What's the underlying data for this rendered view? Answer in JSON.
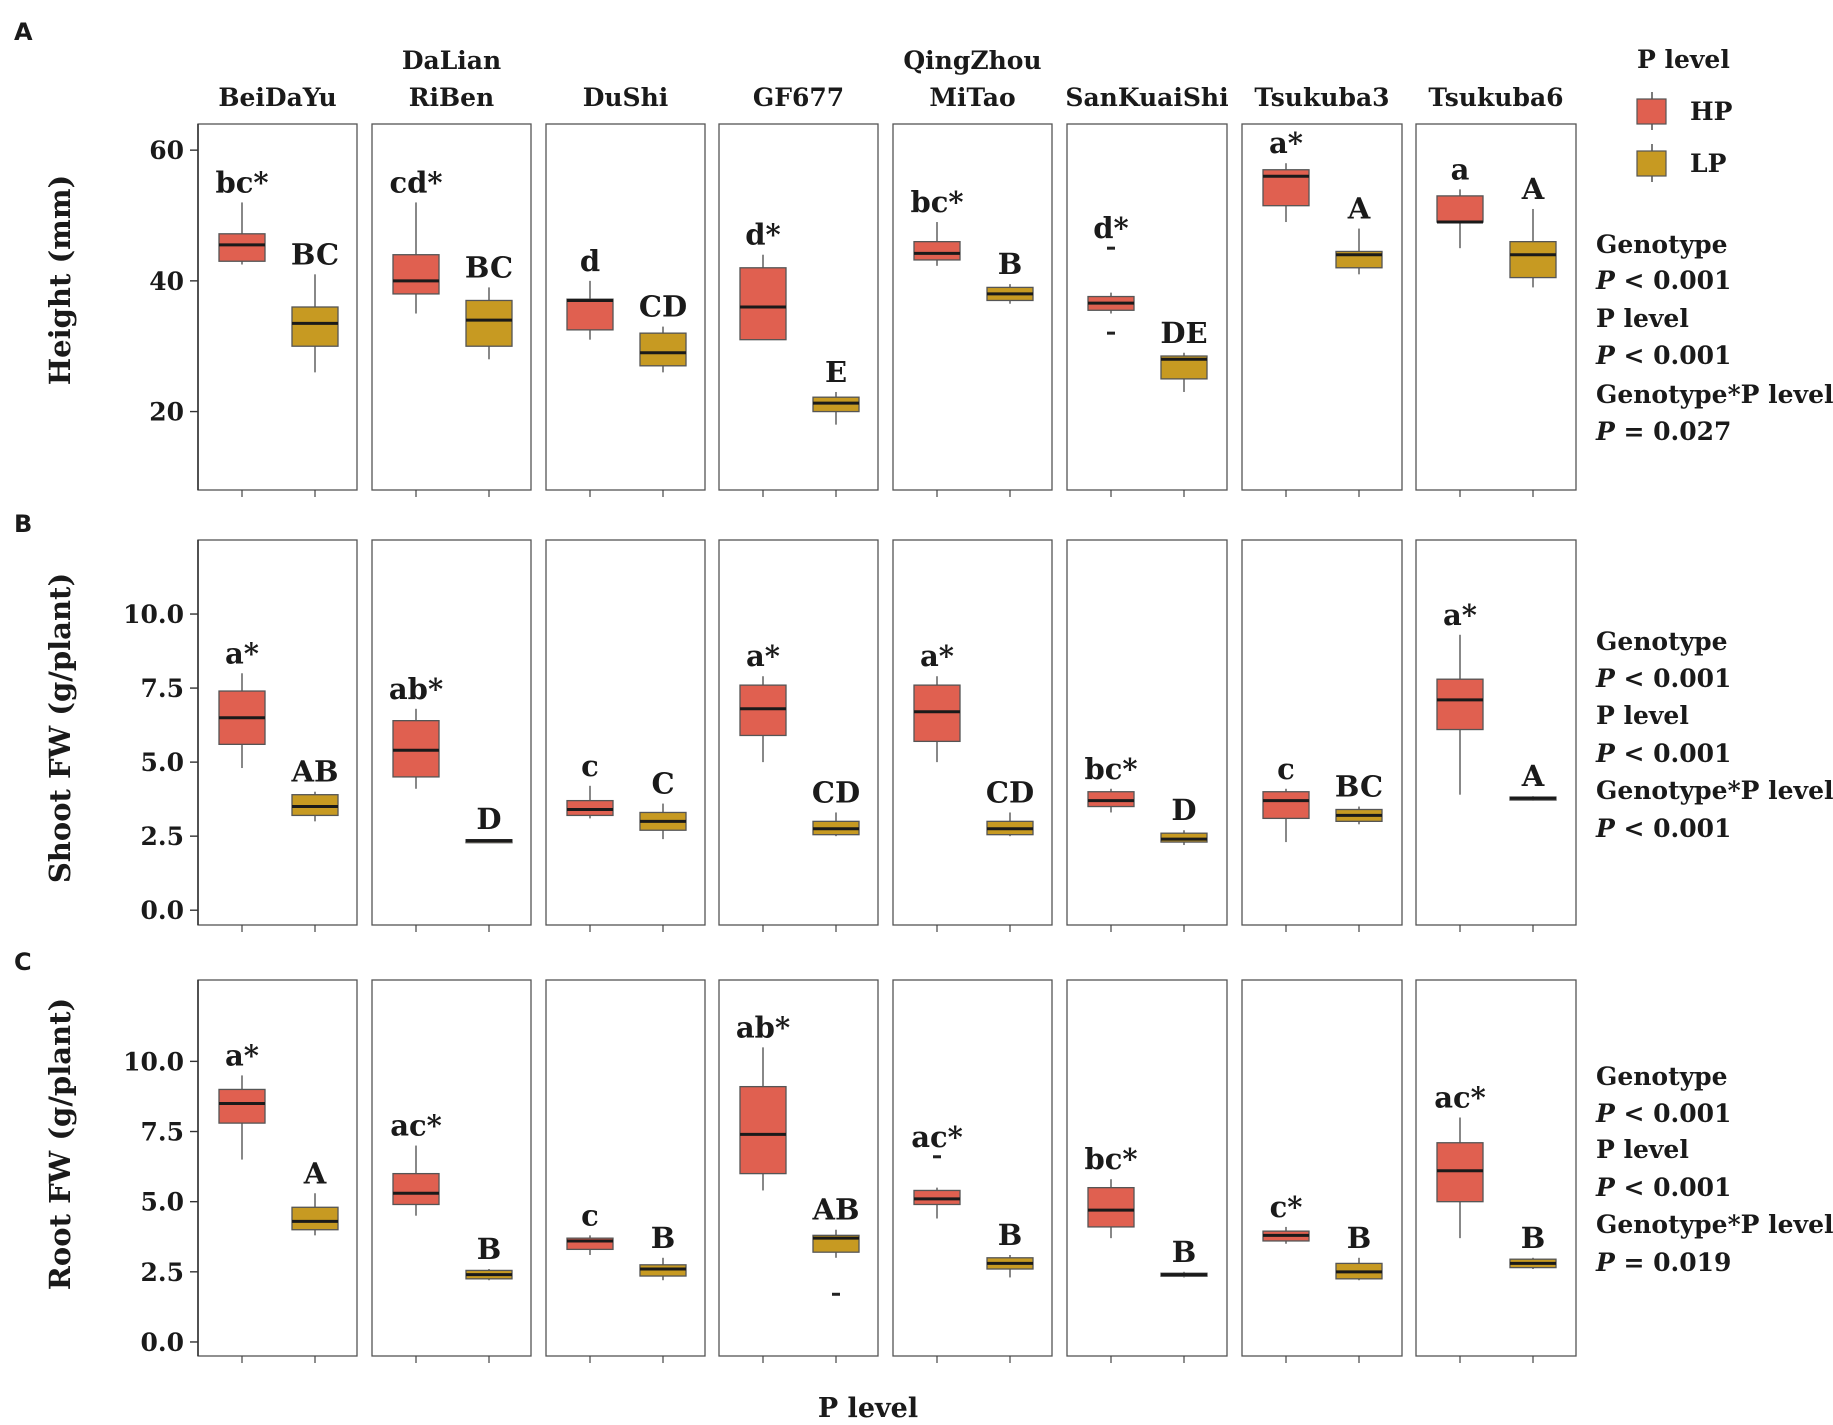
{
  "figure": {
    "genotypes": [
      "BeiDaYu",
      "DaLian\nRiBen",
      "DuShi",
      "GF677",
      "QingZhou\nMiTao",
      "SanKuaiShi",
      "Tsukuba3",
      "Tsukuba6"
    ],
    "x_label": "P level",
    "legend": {
      "title": "P level",
      "items": [
        {
          "label": "HP",
          "color": "#e06050"
        },
        {
          "label": "LP",
          "color": "#c79a22"
        }
      ]
    }
  },
  "chart_data": [
    {
      "type": "box",
      "panel": "A",
      "ylabel": "Height (mm)",
      "ylim": [
        8,
        64
      ],
      "yticks": [
        20,
        40,
        60
      ],
      "ytick_labels": [
        "20",
        "40",
        "60"
      ],
      "categories": [
        "BeiDaYu",
        "DaLian RiBen",
        "DuShi",
        "GF677",
        "QingZhou MiTao",
        "SanKuaiShi",
        "Tsukuba3",
        "Tsukuba6"
      ],
      "series": [
        {
          "name": "HP",
          "color": "#e06050",
          "boxes": [
            {
              "min": 42.5,
              "q1": 43,
              "median": 45.5,
              "q3": 47.2,
              "max": 52,
              "label": "bc*"
            },
            {
              "min": 35,
              "q1": 38,
              "median": 40,
              "q3": 44,
              "max": 52,
              "label": "cd*"
            },
            {
              "min": 31,
              "q1": 32.5,
              "median": 37,
              "q3": 37.2,
              "max": 40,
              "label": "d"
            },
            {
              "min": 31,
              "q1": 31,
              "median": 36,
              "q3": 42,
              "max": 44,
              "label": "d*"
            },
            {
              "min": 42.3,
              "q1": 43.2,
              "median": 44.2,
              "q3": 46,
              "max": 49,
              "label": "bc*"
            },
            {
              "min": 35,
              "q1": 35.5,
              "median": 36.6,
              "q3": 37.6,
              "max": 38.2,
              "outliers": [
                45,
                32
              ],
              "label": "d*"
            },
            {
              "min": 49,
              "q1": 51.5,
              "median": 56,
              "q3": 57,
              "max": 58,
              "label": "a*"
            },
            {
              "min": 45,
              "q1": 49,
              "median": 49,
              "q3": 53,
              "max": 54,
              "label": "a"
            }
          ]
        },
        {
          "name": "LP",
          "color": "#c79a22",
          "boxes": [
            {
              "min": 26,
              "q1": 30,
              "median": 33.5,
              "q3": 36,
              "max": 41,
              "label": "BC"
            },
            {
              "min": 28,
              "q1": 30,
              "median": 34,
              "q3": 37,
              "max": 39,
              "label": "BC"
            },
            {
              "min": 26,
              "q1": 27,
              "median": 29,
              "q3": 32,
              "max": 33,
              "label": "CD"
            },
            {
              "min": 18,
              "q1": 20,
              "median": 21.3,
              "q3": 22.2,
              "max": 23,
              "label": "E"
            },
            {
              "min": 36.5,
              "q1": 37,
              "median": 38,
              "q3": 39,
              "max": 39.5,
              "label": "B"
            },
            {
              "min": 23,
              "q1": 25,
              "median": 28,
              "q3": 28.5,
              "max": 29,
              "label": "DE"
            },
            {
              "min": 41,
              "q1": 42,
              "median": 44,
              "q3": 44.5,
              "max": 48,
              "label": "A"
            },
            {
              "min": 39,
              "q1": 40.5,
              "median": 44,
              "q3": 46,
              "max": 51,
              "label": "A"
            }
          ]
        }
      ],
      "stats": [
        "Genotype",
        "P < 0.001",
        "P level",
        "P < 0.001",
        "Genotype*P level",
        "P = 0.027"
      ]
    },
    {
      "type": "box",
      "panel": "B",
      "ylabel": "Shoot FW (g/plant)",
      "ylim": [
        -0.5,
        12.5
      ],
      "yticks": [
        0,
        2.5,
        5,
        7.5,
        10
      ],
      "ytick_labels": [
        "0.0",
        "2.5",
        "5.0",
        "7.5",
        "10.0"
      ],
      "categories": [
        "BeiDaYu",
        "DaLian RiBen",
        "DuShi",
        "GF677",
        "QingZhou MiTao",
        "SanKuaiShi",
        "Tsukuba3",
        "Tsukuba6"
      ],
      "series": [
        {
          "name": "HP",
          "color": "#e06050",
          "boxes": [
            {
              "min": 4.8,
              "q1": 5.6,
              "median": 6.5,
              "q3": 7.4,
              "max": 8.0,
              "label": "a*"
            },
            {
              "min": 4.1,
              "q1": 4.5,
              "median": 5.4,
              "q3": 6.4,
              "max": 6.8,
              "label": "ab*"
            },
            {
              "min": 3.1,
              "q1": 3.2,
              "median": 3.4,
              "q3": 3.7,
              "max": 4.2,
              "label": "c"
            },
            {
              "min": 5.0,
              "q1": 5.9,
              "median": 6.8,
              "q3": 7.6,
              "max": 7.9,
              "label": "a*"
            },
            {
              "min": 5.0,
              "q1": 5.7,
              "median": 6.7,
              "q3": 7.6,
              "max": 7.9,
              "label": "a*"
            },
            {
              "min": 3.3,
              "q1": 3.5,
              "median": 3.7,
              "q3": 4.0,
              "max": 4.1,
              "label": "bc*"
            },
            {
              "min": 2.3,
              "q1": 3.1,
              "median": 3.7,
              "q3": 4.0,
              "max": 4.1,
              "label": "c"
            },
            {
              "min": 3.9,
              "q1": 6.1,
              "median": 7.1,
              "q3": 7.8,
              "max": 9.3,
              "label": "a*"
            }
          ]
        },
        {
          "name": "LP",
          "color": "#c79a22",
          "boxes": [
            {
              "min": 3.0,
              "q1": 3.2,
              "median": 3.5,
              "q3": 3.9,
              "max": 4.0,
              "label": "AB"
            },
            {
              "min": 2.3,
              "q1": 2.32,
              "median": 2.35,
              "q3": 2.38,
              "max": 2.4,
              "label": "D"
            },
            {
              "min": 2.4,
              "q1": 2.7,
              "median": 3.0,
              "q3": 3.3,
              "max": 3.6,
              "label": "C"
            },
            {
              "min": 2.5,
              "q1": 2.55,
              "median": 2.75,
              "q3": 3.0,
              "max": 3.3,
              "label": "CD"
            },
            {
              "min": 2.5,
              "q1": 2.55,
              "median": 2.75,
              "q3": 3.0,
              "max": 3.3,
              "label": "CD"
            },
            {
              "min": 2.2,
              "q1": 2.3,
              "median": 2.4,
              "q3": 2.6,
              "max": 2.7,
              "label": "D"
            },
            {
              "min": 2.9,
              "q1": 3.0,
              "median": 3.2,
              "q3": 3.4,
              "max": 3.5,
              "label": "BC"
            },
            {
              "min": 3.7,
              "q1": 3.72,
              "median": 3.78,
              "q3": 3.82,
              "max": 3.85,
              "label": "A"
            }
          ]
        }
      ],
      "stats": [
        "Genotype",
        "P < 0.001",
        "P level",
        "P < 0.001",
        "Genotype*P level",
        "P < 0.001"
      ]
    },
    {
      "type": "box",
      "panel": "C",
      "ylabel": "Root FW (g/plant)",
      "ylim": [
        -0.5,
        12.9
      ],
      "yticks": [
        0,
        2.5,
        5,
        7.5,
        10
      ],
      "ytick_labels": [
        "0.0",
        "2.5",
        "5.0",
        "7.5",
        "10.0"
      ],
      "categories": [
        "BeiDaYu",
        "DaLian RiBen",
        "DuShi",
        "GF677",
        "QingZhou MiTao",
        "SanKuaiShi",
        "Tsukuba3",
        "Tsukuba6"
      ],
      "series": [
        {
          "name": "HP",
          "color": "#e06050",
          "boxes": [
            {
              "min": 6.5,
              "q1": 7.8,
              "median": 8.5,
              "q3": 9.0,
              "max": 9.5,
              "label": "a*"
            },
            {
              "min": 4.5,
              "q1": 4.9,
              "median": 5.3,
              "q3": 6.0,
              "max": 7.0,
              "label": "ac*"
            },
            {
              "min": 3.1,
              "q1": 3.3,
              "median": 3.6,
              "q3": 3.7,
              "max": 3.8,
              "label": "c"
            },
            {
              "min": 5.4,
              "q1": 6.0,
              "median": 7.4,
              "q3": 9.1,
              "max": 10.5,
              "label": "ab*"
            },
            {
              "min": 4.4,
              "q1": 4.9,
              "median": 5.1,
              "q3": 5.4,
              "max": 5.5,
              "outliers": [
                6.6
              ],
              "label": "ac*"
            },
            {
              "min": 3.7,
              "q1": 4.1,
              "median": 4.7,
              "q3": 5.5,
              "max": 5.8,
              "label": "bc*"
            },
            {
              "min": 3.5,
              "q1": 3.6,
              "median": 3.8,
              "q3": 3.95,
              "max": 4.1,
              "label": "c*"
            },
            {
              "min": 3.7,
              "q1": 5.0,
              "median": 6.1,
              "q3": 7.1,
              "max": 8.0,
              "label": "ac*"
            }
          ]
        },
        {
          "name": "LP",
          "color": "#c79a22",
          "boxes": [
            {
              "min": 3.8,
              "q1": 4.0,
              "median": 4.3,
              "q3": 4.8,
              "max": 5.3,
              "label": "A"
            },
            {
              "min": 2.2,
              "q1": 2.25,
              "median": 2.4,
              "q3": 2.55,
              "max": 2.6,
              "label": "B"
            },
            {
              "min": 2.2,
              "q1": 2.35,
              "median": 2.6,
              "q3": 2.75,
              "max": 3.0,
              "label": "B"
            },
            {
              "min": 3.0,
              "q1": 3.2,
              "median": 3.7,
              "q3": 3.8,
              "max": 4.0,
              "outliers": [
                1.7
              ],
              "label": "AB"
            },
            {
              "min": 2.3,
              "q1": 2.6,
              "median": 2.8,
              "q3": 3.0,
              "max": 3.1,
              "label": "B"
            },
            {
              "min": 2.3,
              "q1": 2.35,
              "median": 2.4,
              "q3": 2.45,
              "max": 2.5,
              "label": "B"
            },
            {
              "min": 2.2,
              "q1": 2.25,
              "median": 2.5,
              "q3": 2.8,
              "max": 3.0,
              "label": "B"
            },
            {
              "min": 2.6,
              "q1": 2.65,
              "median": 2.8,
              "q3": 2.95,
              "max": 3.0,
              "label": "B"
            }
          ]
        }
      ],
      "stats": [
        "Genotype",
        "P < 0.001",
        "P level",
        "P < 0.001",
        "Genotype*P level",
        "P = 0.019"
      ]
    }
  ]
}
